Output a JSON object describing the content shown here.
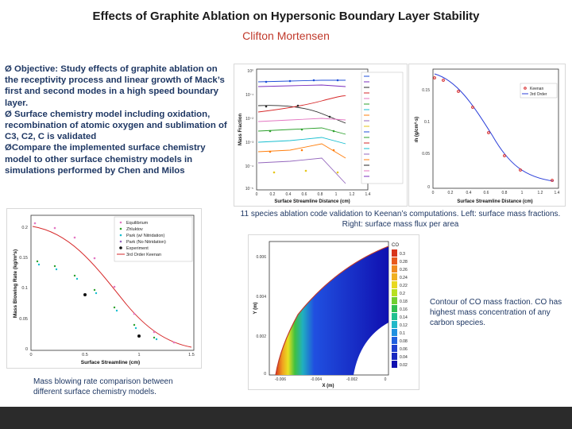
{
  "title": "Effects of Graphite Ablation on Hypersonic Boundary Layer Stability",
  "author": "Clifton Mortensen",
  "bullets": [
    "Ø Objective: Study effects of graphite ablation on the receptivity process and linear growth of Mack’s first and second modes in a high speed boundary layer.",
    "Ø Surface chemistry model including oxidation, recombination of atomic oxygen and sublimation of C3, C2, C is validated",
    "ØCompare the implemented surface chemistry model to other surface chemistry models in simulations performed by Chen and Milos"
  ],
  "captions": {
    "validation": "11 species ablation code validation to Keenan’s computations. Left: surface mass fractions. Right: surface mass flux per area",
    "contour": "Contour of CO mass fraction. CO has highest mass concentration of any carbon species.",
    "blowing": "Mass blowing rate comparison between different surface chemistry models."
  },
  "fig_mass_fraction": {
    "xlabel": "Surface Streamline Distance (cm)",
    "ylabel": "Mass Fraction",
    "xticks": [
      "0",
      "0.2",
      "0.4",
      "0.6",
      "0.8",
      "1",
      "1.2",
      "1.4"
    ],
    "yticks": [
      "10⁰",
      "10⁻¹",
      "10⁻²",
      "10⁻³",
      "10⁻⁴",
      "10⁻⁵"
    ]
  },
  "fig_mass_flux": {
    "xlabel": "Surface Streamline Distance (cm)",
    "ylabel": "ṁ (g/cm²·s)",
    "xticks": [
      "0",
      "0.2",
      "0.4",
      "0.6",
      "0.8",
      "1",
      "1.2",
      "1.4"
    ],
    "yticks": [
      "0.15",
      "0.1",
      "0.05",
      "0"
    ],
    "legend": [
      "Keenan",
      "3rd Order"
    ]
  },
  "fig_blowing": {
    "xlabel": "Surface Streamline (cm)",
    "ylabel": "Mass Blowing Rate (kg/m²s)",
    "xticks": [
      "0",
      "0.5",
      "1",
      "1.5"
    ],
    "yticks": [
      "0.2",
      "0.15",
      "0.1",
      "0.05",
      "0"
    ],
    "legend": [
      "Equilibrium",
      "Zhluktov",
      "Park (w/ Nitridation)",
      "Park (No Nitridation)",
      "Experiment",
      "3rd Order Keenan"
    ]
  },
  "fig_contour": {
    "xlabel": "X (m)",
    "ylabel": "Y (m)",
    "xticks": [
      "-0.006",
      "-0.004",
      "-0.002",
      "0"
    ],
    "yticks": [
      "0.006",
      "0.004",
      "0.002",
      "0"
    ],
    "legend_title": "CO",
    "levels": [
      "0.3",
      "0.28",
      "0.26",
      "0.24",
      "0.22",
      "0.2",
      "0.18",
      "0.16",
      "0.14",
      "0.12",
      "0.1",
      "0.08",
      "0.06",
      "0.04",
      "0.02"
    ]
  },
  "colors": {
    "title": "#1a1a1a",
    "author": "#c0392b",
    "body_text": "#1f3864",
    "footer": "#2b2b2b"
  }
}
